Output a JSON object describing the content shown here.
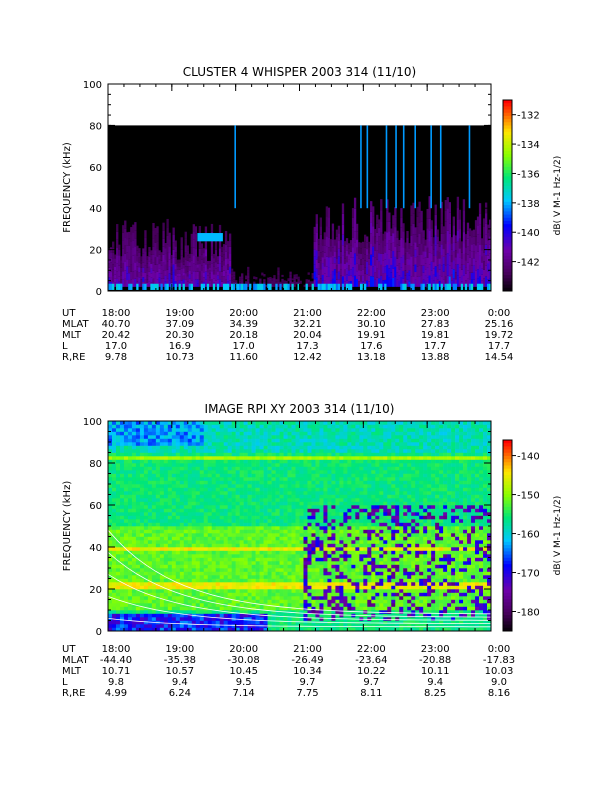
{
  "chart_data": [
    {
      "type": "heatmap",
      "title": "CLUSTER 4 WHISPER 2003 314 (11/10)",
      "ylabel": "FREQUENCY (kHz)",
      "ylim": [
        0,
        100
      ],
      "yticks": [
        "0",
        "20",
        "40",
        "60",
        "80",
        "100"
      ],
      "xlim_hours": [
        18,
        24
      ],
      "data_top_khz": 80,
      "colorbar": {
        "label": "dB( V M-1 Hz-1/2)",
        "range": [
          -144,
          -131
        ],
        "ticks": [
          "-132",
          "-134",
          "-136",
          "-138",
          "-140",
          "-142"
        ],
        "tick_values": [
          -132,
          -134,
          -136,
          -138,
          -140,
          -142
        ]
      },
      "ephemeris": {
        "rows": [
          {
            "label": "UT",
            "values": [
              "18:00",
              "19:00",
              "20:00",
              "21:00",
              "22:00",
              "23:00",
              "0:00"
            ]
          },
          {
            "label": "MLAT",
            "values": [
              "40.70",
              "37.09",
              "34.39",
              "32.21",
              "30.10",
              "27.83",
              "25.16"
            ]
          },
          {
            "label": "MLT",
            "values": [
              "20.42",
              "20.30",
              "20.18",
              "20.04",
              "19.91",
              "19.81",
              "19.72"
            ]
          },
          {
            "label": "L",
            "values": [
              "17.0",
              "16.9",
              "17.0",
              "17.3",
              "17.6",
              "17.7",
              "17.7"
            ]
          },
          {
            "label": "R,RE",
            "values": [
              "9.78",
              "10.73",
              "11.60",
              "12.42",
              "13.18",
              "13.88",
              "14.54"
            ]
          }
        ]
      }
    },
    {
      "type": "heatmap",
      "title": "IMAGE RPI XY 2003 314 (11/10)",
      "ylabel": "FREQUENCY (kHz)",
      "ylim": [
        0,
        100
      ],
      "yticks": [
        "0",
        "20",
        "40",
        "60",
        "80",
        "100"
      ],
      "xlim_hours": [
        18,
        24
      ],
      "colorbar": {
        "label": "dB( V M-1 Hz-1/2)",
        "range": [
          -185,
          -136
        ],
        "ticks": [
          "-140",
          "-150",
          "-160",
          "-170",
          "-180"
        ],
        "tick_values": [
          -140,
          -150,
          -160,
          -170,
          -180
        ]
      },
      "ephemeris": {
        "rows": [
          {
            "label": "UT",
            "values": [
              "18:00",
              "19:00",
              "20:00",
              "21:00",
              "22:00",
              "23:00",
              "0:00"
            ]
          },
          {
            "label": "MLAT",
            "values": [
              "-44.40",
              "-35.38",
              "-30.08",
              "-26.49",
              "-23.64",
              "-20.88",
              "-17.83"
            ]
          },
          {
            "label": "MLT",
            "values": [
              "10.71",
              "10.57",
              "10.45",
              "10.34",
              "10.22",
              "10.11",
              "10.03"
            ]
          },
          {
            "label": "L",
            "values": [
              "9.8",
              "9.4",
              "9.5",
              "9.7",
              "9.7",
              "9.4",
              "9.0"
            ]
          },
          {
            "label": "R,RE",
            "values": [
              "4.99",
              "6.24",
              "7.14",
              "7.75",
              "8.11",
              "8.25",
              "8.16"
            ]
          }
        ]
      }
    }
  ]
}
